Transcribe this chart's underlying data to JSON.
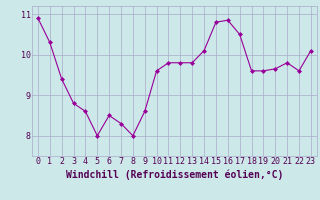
{
  "x": [
    0,
    1,
    2,
    3,
    4,
    5,
    6,
    7,
    8,
    9,
    10,
    11,
    12,
    13,
    14,
    15,
    16,
    17,
    18,
    19,
    20,
    21,
    22,
    23
  ],
  "y": [
    10.9,
    10.3,
    9.4,
    8.8,
    8.6,
    8.0,
    8.5,
    8.3,
    8.0,
    8.6,
    9.6,
    9.8,
    9.8,
    9.8,
    10.1,
    10.8,
    10.85,
    10.5,
    9.6,
    9.6,
    9.65,
    9.8,
    9.6,
    10.1
  ],
  "line_color": "#990099",
  "marker": "D",
  "marker_size": 2,
  "bg_color": "#cce8e8",
  "grid_color": "#aaaacc",
  "xlabel": "Windchill (Refroidissement éolien,°C)",
  "xlabel_color": "#550055",
  "xlabel_fontsize": 7,
  "ylim": [
    7.5,
    11.2
  ],
  "xlim": [
    -0.5,
    23.5
  ],
  "yticks": [
    8,
    9,
    10,
    11
  ],
  "xticks": [
    0,
    1,
    2,
    3,
    4,
    5,
    6,
    7,
    8,
    9,
    10,
    11,
    12,
    13,
    14,
    15,
    16,
    17,
    18,
    19,
    20,
    21,
    22,
    23
  ],
  "tick_fontsize": 6,
  "tick_color": "#550055"
}
